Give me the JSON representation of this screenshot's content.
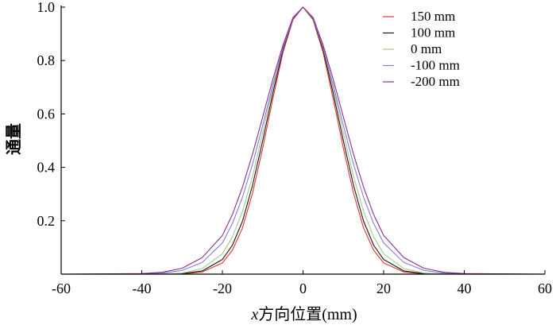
{
  "chart_data": {
    "type": "line",
    "title": "",
    "xlabel_italic": "x",
    "xlabel_rest": "方向位置(mm)",
    "ylabel": "通量",
    "xlim": [
      -60,
      60
    ],
    "ylim": [
      0,
      1.0
    ],
    "xticks": [
      -60,
      -40,
      -20,
      0,
      20,
      40,
      60
    ],
    "xtick_labels": [
      "-60",
      "-40",
      "-20",
      "0",
      "20",
      "40",
      "60"
    ],
    "yticks": [
      0.2,
      0.4,
      0.6,
      0.8,
      1.0
    ],
    "ytick_labels": [
      "0.2",
      "0.4",
      "0.6",
      "0.8",
      "1.0"
    ],
    "grid": false,
    "legend_position": "top-right",
    "x": [
      -60,
      -40,
      -35,
      -30,
      -25,
      -20,
      -17.5,
      -15,
      -12.5,
      -10,
      -7.5,
      -5,
      -2.5,
      0,
      2.5,
      5,
      7.5,
      10,
      12.5,
      15,
      17.5,
      20,
      25,
      30,
      35,
      40,
      60
    ],
    "series": [
      {
        "name": "150 mm",
        "color": "#e8332f",
        "values": [
          0.0,
          0.0,
          0.0,
          0.001,
          0.008,
          0.042,
          0.09,
          0.174,
          0.305,
          0.472,
          0.656,
          0.829,
          0.953,
          1.0,
          0.953,
          0.829,
          0.656,
          0.472,
          0.305,
          0.174,
          0.09,
          0.042,
          0.008,
          0.001,
          0.0,
          0.0,
          0.0
        ]
      },
      {
        "name": "100 mm",
        "color": "#1a1a1a",
        "values": [
          0.0,
          0.0,
          0.0,
          0.002,
          0.012,
          0.055,
          0.109,
          0.199,
          0.334,
          0.5,
          0.677,
          0.84,
          0.956,
          1.0,
          0.956,
          0.84,
          0.677,
          0.5,
          0.334,
          0.199,
          0.109,
          0.055,
          0.012,
          0.002,
          0.0,
          0.0,
          0.0
        ]
      },
      {
        "name": "0 mm",
        "color": "#a8c98a",
        "values": [
          0.0,
          0.0,
          0.001,
          0.004,
          0.021,
          0.076,
          0.14,
          0.236,
          0.368,
          0.53,
          0.698,
          0.848,
          0.959,
          1.0,
          0.959,
          0.848,
          0.698,
          0.53,
          0.368,
          0.236,
          0.14,
          0.076,
          0.021,
          0.004,
          0.001,
          0.0,
          0.0
        ]
      },
      {
        "name": "-100 mm",
        "color": "#8080e0",
        "values": [
          0.0,
          0.001,
          0.004,
          0.014,
          0.044,
          0.117,
          0.19,
          0.289,
          0.413,
          0.557,
          0.708,
          0.847,
          0.958,
          1.0,
          0.958,
          0.847,
          0.708,
          0.557,
          0.413,
          0.289,
          0.19,
          0.117,
          0.044,
          0.014,
          0.004,
          0.001,
          0.0
        ]
      },
      {
        "name": "-200 mm",
        "color": "#8b2f8b",
        "values": [
          0.0,
          0.002,
          0.007,
          0.022,
          0.062,
          0.145,
          0.224,
          0.327,
          0.451,
          0.589,
          0.729,
          0.857,
          0.961,
          1.0,
          0.961,
          0.857,
          0.729,
          0.589,
          0.451,
          0.327,
          0.224,
          0.145,
          0.062,
          0.022,
          0.007,
          0.002,
          0.0
        ]
      }
    ]
  }
}
